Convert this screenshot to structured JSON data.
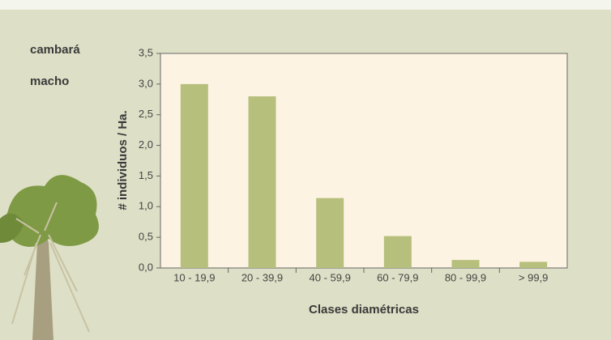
{
  "chart_data": {
    "type": "bar",
    "title": "cambará",
    "subtitle": "macho",
    "x_label": "Clases diamétricas",
    "y_label": "# individuos / Ha.",
    "categories": [
      "10 - 19,9",
      "20 - 39,9",
      "40 - 59,9",
      "60 - 79,9",
      "80 - 99,9",
      "> 99,9"
    ],
    "values": [
      3.0,
      2.8,
      1.14,
      0.52,
      0.13,
      0.1
    ],
    "color": "#b6bf7c",
    "ylim": [
      0,
      3.5
    ],
    "yticks": [
      {
        "value": 0,
        "label": "0,0"
      },
      {
        "value": 0.5,
        "label": "0,5"
      },
      {
        "value": 1,
        "label": "1,0"
      },
      {
        "value": 1.5,
        "label": "1,5"
      },
      {
        "value": 2,
        "label": "2,0"
      },
      {
        "value": 2.5,
        "label": "2,5"
      },
      {
        "value": 3,
        "label": "3,0"
      },
      {
        "value": 3.5,
        "label": "3,5"
      }
    ],
    "grid": false
  }
}
